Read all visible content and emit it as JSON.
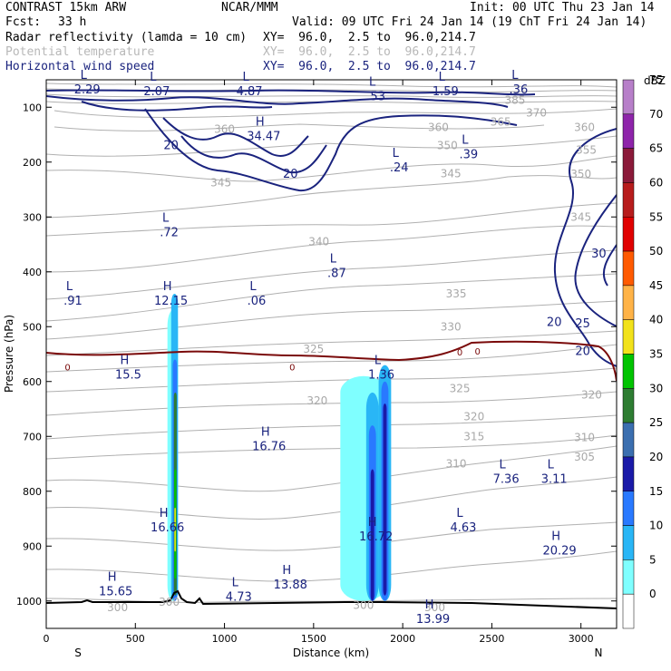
{
  "header": {
    "model": "CONTRAST 15km ARW",
    "org": "NCAR/MMM",
    "init": "Init: 00 UTC Thu 23 Jan 14",
    "fcst_label": "Fcst:",
    "fcst_value": "33 h",
    "valid": "Valid: 09 UTC Fri 24 Jan 14 (19 ChT Fri 24 Jan 14)",
    "fields": [
      {
        "name": "Radar reflectivity (lamda = 10 cm)",
        "xy": "XY=  96.0,  2.5 to  96.0,214.7",
        "color": "#000000"
      },
      {
        "name": "Potential temperature",
        "xy": "XY=  96.0,  2.5 to  96.0,214.7",
        "color": "#b8b8b8"
      },
      {
        "name": "Horizontal wind speed",
        "xy": "XY=  96.0,  2.5 to  96.0,214.7",
        "color": "#1a237e"
      }
    ]
  },
  "chart_data": {
    "type": "cross-section",
    "xlabel": "Distance (km)",
    "ylabel": "Pressure (hPa)",
    "xlim": [
      0,
      3200
    ],
    "ylim": [
      1050,
      50
    ],
    "x_ticks": [
      0,
      500,
      1000,
      1500,
      2000,
      2500,
      3000
    ],
    "y_ticks": [
      100,
      200,
      300,
      400,
      500,
      600,
      700,
      800,
      900,
      1000
    ],
    "x_end_labels": {
      "left": "S",
      "right": "N"
    },
    "colorbar": {
      "unit": "dBZ",
      "levels": [
        0,
        5,
        10,
        15,
        20,
        25,
        30,
        35,
        40,
        45,
        50,
        55,
        60,
        65,
        70,
        75
      ],
      "colors": [
        "#ffffff",
        "#7fffff",
        "#29b6f6",
        "#2979ff",
        "#1a1aa8",
        "#3b6fb0",
        "#2e7d32",
        "#00c400",
        "#f2e21b",
        "#ffb347",
        "#ff5a00",
        "#e00000",
        "#b71c1c",
        "#8b1a3a",
        "#8e24aa",
        "#b77fc9"
      ]
    },
    "theta_labels": [
      {
        "v": "385",
        "x": 2630,
        "p": 87
      },
      {
        "v": "370",
        "x": 2750,
        "p": 110
      },
      {
        "v": "365",
        "x": 2550,
        "p": 127
      },
      {
        "v": "360",
        "x": 1000,
        "p": 140
      },
      {
        "v": "360",
        "x": 2200,
        "p": 137
      },
      {
        "v": "360",
        "x": 3020,
        "p": 137
      },
      {
        "v": "355",
        "x": 3030,
        "p": 178
      },
      {
        "v": "350",
        "x": 2250,
        "p": 170
      },
      {
        "v": "350",
        "x": 3000,
        "p": 222
      },
      {
        "v": "345",
        "x": 980,
        "p": 238
      },
      {
        "v": "345",
        "x": 2270,
        "p": 221
      },
      {
        "v": "345",
        "x": 3000,
        "p": 300
      },
      {
        "v": "340",
        "x": 1530,
        "p": 345
      },
      {
        "v": "335",
        "x": 2300,
        "p": 440
      },
      {
        "v": "330",
        "x": 2270,
        "p": 500
      },
      {
        "v": "325",
        "x": 1500,
        "p": 541
      },
      {
        "v": "325",
        "x": 2320,
        "p": 613
      },
      {
        "v": "320",
        "x": 1520,
        "p": 635
      },
      {
        "v": "320",
        "x": 2400,
        "p": 664
      },
      {
        "v": "320",
        "x": 3060,
        "p": 624
      },
      {
        "v": "315",
        "x": 2400,
        "p": 700
      },
      {
        "v": "310",
        "x": 2300,
        "p": 750
      },
      {
        "v": "310",
        "x": 3020,
        "p": 702
      },
      {
        "v": "305",
        "x": 3020,
        "p": 738
      },
      {
        "v": "300",
        "x": 400,
        "p": 1012
      },
      {
        "v": "300",
        "x": 690,
        "p": 1002
      },
      {
        "v": "300",
        "x": 1780,
        "p": 1008
      },
      {
        "v": "300",
        "x": 2180,
        "p": 1012
      }
    ],
    "wind_labels": [
      {
        "v": "20",
        "x": 700,
        "p": 170
      },
      {
        "v": "20",
        "x": 1370,
        "p": 222
      },
      {
        "v": "30",
        "x": 3100,
        "p": 367
      },
      {
        "v": "25",
        "x": 3010,
        "p": 495
      },
      {
        "v": "20",
        "x": 2850,
        "p": 492
      },
      {
        "v": "20",
        "x": 3010,
        "p": 545
      },
      {
        "v": "0",
        "x": 120,
        "p": 573
      },
      {
        "v": "0",
        "x": 1380,
        "p": 573
      },
      {
        "v": "0",
        "x": 2320,
        "p": 546
      },
      {
        "v": "0",
        "x": 2420,
        "p": 544
      }
    ],
    "extrema": [
      {
        "t": "L",
        "v": "2.29",
        "x": 230,
        "p": 60
      },
      {
        "t": "L",
        "v": "2.07",
        "x": 620,
        "p": 63
      },
      {
        "t": "L",
        "v": "4.87",
        "x": 1140,
        "p": 63
      },
      {
        "t": "L",
        "v": ".53",
        "x": 1850,
        "p": 72
      },
      {
        "t": "L",
        "v": "1.59",
        "x": 2240,
        "p": 63
      },
      {
        "t": "L",
        "v": ".36",
        "x": 2650,
        "p": 60
      },
      {
        "t": "H",
        "v": "34.47",
        "x": 1220,
        "p": 145
      },
      {
        "t": "L",
        "v": ".24",
        "x": 1980,
        "p": 202
      },
      {
        "t": "L",
        "v": ".39",
        "x": 2370,
        "p": 178
      },
      {
        "t": "L",
        "v": ".72",
        "x": 690,
        "p": 320
      },
      {
        "t": "L",
        "v": ".87",
        "x": 1630,
        "p": 395
      },
      {
        "t": "L",
        "v": ".91",
        "x": 150,
        "p": 445
      },
      {
        "t": "H",
        "v": "12.15",
        "x": 700,
        "p": 445
      },
      {
        "t": "L",
        "v": ".06",
        "x": 1180,
        "p": 445
      },
      {
        "t": "H",
        "v": "15.5",
        "x": 460,
        "p": 580
      },
      {
        "t": "L",
        "v": "1.36",
        "x": 1880,
        "p": 580
      },
      {
        "t": "H",
        "v": "16.76",
        "x": 1250,
        "p": 710
      },
      {
        "t": "L",
        "v": "7.36",
        "x": 2580,
        "p": 770
      },
      {
        "t": "L",
        "v": "3.11",
        "x": 2850,
        "p": 770
      },
      {
        "t": "H",
        "v": "16.66",
        "x": 680,
        "p": 858
      },
      {
        "t": "L",
        "v": "4.63",
        "x": 2340,
        "p": 858
      },
      {
        "t": "H",
        "v": "16.72",
        "x": 1850,
        "p": 875
      },
      {
        "t": "H",
        "v": "20.29",
        "x": 2880,
        "p": 900
      },
      {
        "t": "H",
        "v": "13.88",
        "x": 1370,
        "p": 962
      },
      {
        "t": "H",
        "v": "15.65",
        "x": 390,
        "p": 975
      },
      {
        "t": "L",
        "v": "4.73",
        "x": 1080,
        "p": 985
      },
      {
        "t": "H",
        "v": "13.99",
        "x": 2170,
        "p": 1025
      }
    ],
    "radar_cells": [
      {
        "x": 710,
        "w": 60,
        "ptop": 470,
        "pbot": 1000,
        "color": "#7fffff"
      },
      {
        "x": 720,
        "w": 38,
        "ptop": 440,
        "pbot": 1000,
        "color": "#29b6f6"
      },
      {
        "x": 722,
        "w": 24,
        "ptop": 560,
        "pbot": 1000,
        "color": "#2979ff"
      },
      {
        "x": 724,
        "w": 16,
        "ptop": 620,
        "pbot": 990,
        "color": "#2e7d32"
      },
      {
        "x": 724,
        "w": 12,
        "ptop": 760,
        "pbot": 960,
        "color": "#00c400"
      },
      {
        "x": 723,
        "w": 8,
        "ptop": 830,
        "pbot": 910,
        "color": "#f2e21b"
      },
      {
        "x": 1780,
        "w": 260,
        "ptop": 590,
        "pbot": 1000,
        "color": "#7fffff"
      },
      {
        "x": 1830,
        "w": 70,
        "ptop": 620,
        "pbot": 1000,
        "color": "#29b6f6"
      },
      {
        "x": 1900,
        "w": 70,
        "ptop": 570,
        "pbot": 1000,
        "color": "#29b6f6"
      },
      {
        "x": 1830,
        "w": 40,
        "ptop": 680,
        "pbot": 1000,
        "color": "#2979ff"
      },
      {
        "x": 1900,
        "w": 40,
        "ptop": 600,
        "pbot": 1000,
        "color": "#2979ff"
      },
      {
        "x": 1830,
        "w": 20,
        "ptop": 760,
        "pbot": 1000,
        "color": "#1a1aa8"
      },
      {
        "x": 1900,
        "w": 20,
        "ptop": 640,
        "pbot": 990,
        "color": "#1a1aa8"
      }
    ]
  }
}
